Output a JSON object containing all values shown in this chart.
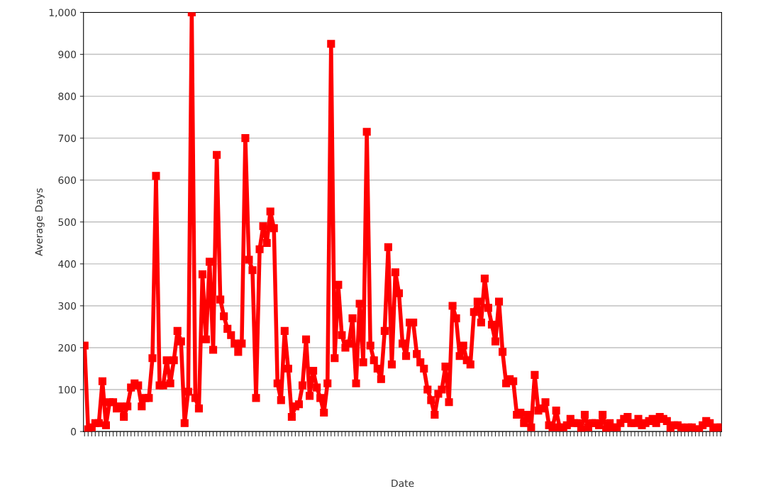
{
  "chart_data": {
    "type": "line",
    "xlabel": "Date",
    "ylabel": "Average Days",
    "categories": [
      null,
      null,
      null,
      null,
      null,
      null,
      null,
      null,
      null,
      null,
      null,
      null,
      null,
      null,
      null,
      null,
      null,
      null,
      null,
      null,
      null,
      null,
      null,
      null,
      null,
      null,
      null,
      null,
      null,
      null,
      null,
      null,
      null,
      null,
      null,
      null,
      null,
      null,
      null,
      null,
      null,
      null,
      null,
      null,
      null,
      null,
      null,
      null,
      null,
      null,
      null,
      null,
      null,
      null,
      null,
      null,
      null,
      null,
      null,
      null,
      null,
      null,
      null,
      null,
      null,
      null,
      null,
      null,
      null,
      null,
      null,
      null,
      null,
      null,
      null,
      null,
      null,
      null,
      null,
      null,
      null,
      null,
      null,
      null,
      null,
      null,
      null,
      null,
      null,
      null,
      null,
      null,
      null,
      null,
      null,
      null,
      null,
      null,
      null,
      null,
      null,
      null,
      null,
      null,
      null,
      null,
      null,
      null,
      null,
      null,
      null,
      null,
      null,
      null,
      null,
      null,
      null,
      null,
      null,
      null,
      null,
      null,
      null,
      null,
      null,
      null,
      null,
      null,
      null,
      null,
      null,
      null,
      null,
      null,
      null,
      null,
      null,
      null,
      null,
      null,
      null,
      null,
      null,
      null,
      null,
      null,
      null,
      null,
      null,
      null,
      null,
      null,
      null,
      null,
      null,
      null,
      null,
      null,
      null,
      null,
      null,
      null,
      null,
      null,
      null,
      null,
      null,
      null,
      null,
      null,
      null,
      null,
      null,
      null,
      null,
      null,
      null,
      null,
      null
    ],
    "series": [
      {
        "color": "#ff0000",
        "values": [
          205,
          5,
          10,
          20,
          20,
          120,
          15,
          70,
          70,
          55,
          60,
          35,
          60,
          105,
          115,
          110,
          60,
          80,
          80,
          175,
          610,
          110,
          110,
          170,
          115,
          170,
          240,
          215,
          20,
          95,
          1000,
          80,
          55,
          375,
          220,
          405,
          195,
          660,
          315,
          275,
          245,
          230,
          210,
          190,
          210,
          700,
          410,
          385,
          80,
          435,
          490,
          450,
          525,
          485,
          115,
          75,
          240,
          150,
          35,
          60,
          65,
          110,
          220,
          85,
          145,
          105,
          80,
          45,
          115,
          925,
          175,
          350,
          230,
          200,
          210,
          270,
          115,
          305,
          165,
          715,
          205,
          170,
          150,
          125,
          240,
          440,
          160,
          380,
          330,
          210,
          180,
          260,
          260,
          185,
          165,
          150,
          100,
          75,
          40,
          90,
          100,
          155,
          70,
          300,
          270,
          180,
          205,
          170,
          160,
          285,
          310,
          260,
          365,
          295,
          255,
          215,
          310,
          190,
          115,
          125,
          120,
          40,
          45,
          20,
          40,
          10,
          135,
          50,
          55,
          70,
          15,
          10,
          50,
          10,
          10,
          15,
          30,
          20,
          20,
          5,
          40,
          10,
          20,
          20,
          15,
          40,
          5,
          20,
          10,
          10,
          20,
          30,
          35,
          20,
          20,
          30,
          15,
          20,
          25,
          30,
          20,
          35,
          30,
          25,
          5,
          15,
          15,
          10,
          5,
          10,
          10,
          5,
          5,
          15,
          25,
          20,
          5,
          10,
          10
        ]
      }
    ],
    "ylim": [
      0,
      1000
    ],
    "yticks": [
      0,
      100,
      200,
      300,
      400,
      500,
      600,
      700,
      800,
      900,
      {
        "value": 1000,
        "label": "1,000"
      }
    ],
    "grid": "y",
    "marker": "square",
    "line_style": "solid",
    "tick_labels": "y"
  }
}
